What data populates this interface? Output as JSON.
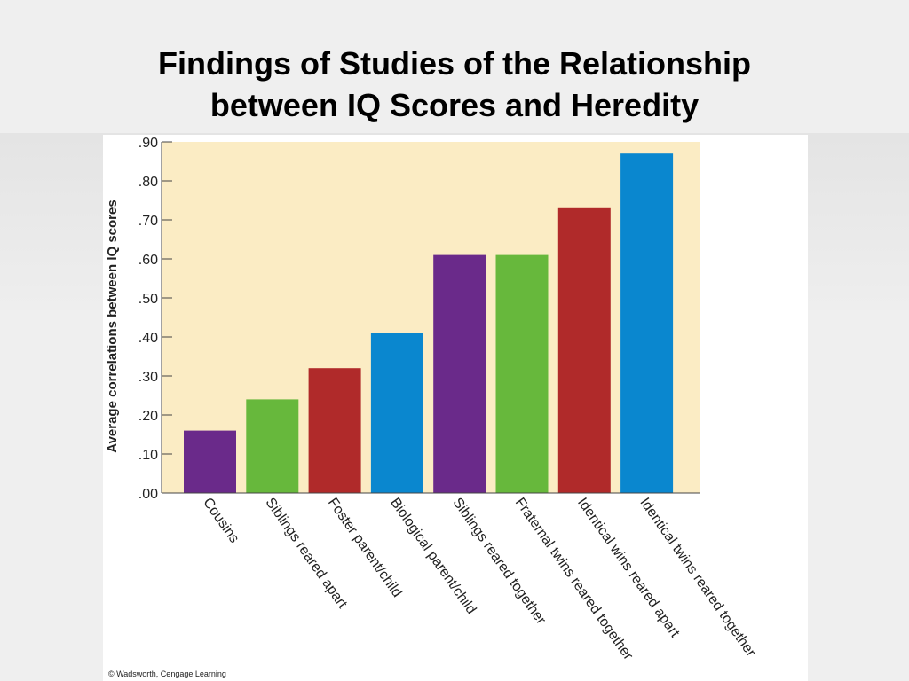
{
  "slide": {
    "title_line1": "Findings of Studies of the Relationship",
    "title_line2": "between IQ Scores and Heredity"
  },
  "credit": "© Wadsworth, Cengage Learning",
  "colors": {
    "plot_bg": "#fbecc4",
    "purple": "#6a2a8a",
    "green": "#67b83c",
    "red": "#b02a2a",
    "blue": "#0a87cf"
  },
  "chart_data": {
    "type": "bar",
    "title": "",
    "xlabel": "",
    "ylabel": "Average correlations between IQ scores",
    "ylim": [
      0,
      0.9
    ],
    "yticks": [
      ".00",
      ".10",
      ".20",
      ".30",
      ".40",
      ".50",
      ".60",
      ".70",
      ".80",
      ".90"
    ],
    "categories": [
      "Cousins",
      "Siblings reared apart",
      "Foster parent/child",
      "Biological parent/child",
      "Siblings reared together",
      "Fraternal twins reared together",
      "Identical wins reared apart",
      "Identical twins reared together"
    ],
    "values": [
      0.16,
      0.24,
      0.32,
      0.41,
      0.61,
      0.61,
      0.73,
      0.87
    ],
    "bar_colors": [
      "#6a2a8a",
      "#67b83c",
      "#b02a2a",
      "#0a87cf",
      "#6a2a8a",
      "#67b83c",
      "#b02a2a",
      "#0a87cf"
    ],
    "grid": false,
    "legend": "none"
  }
}
